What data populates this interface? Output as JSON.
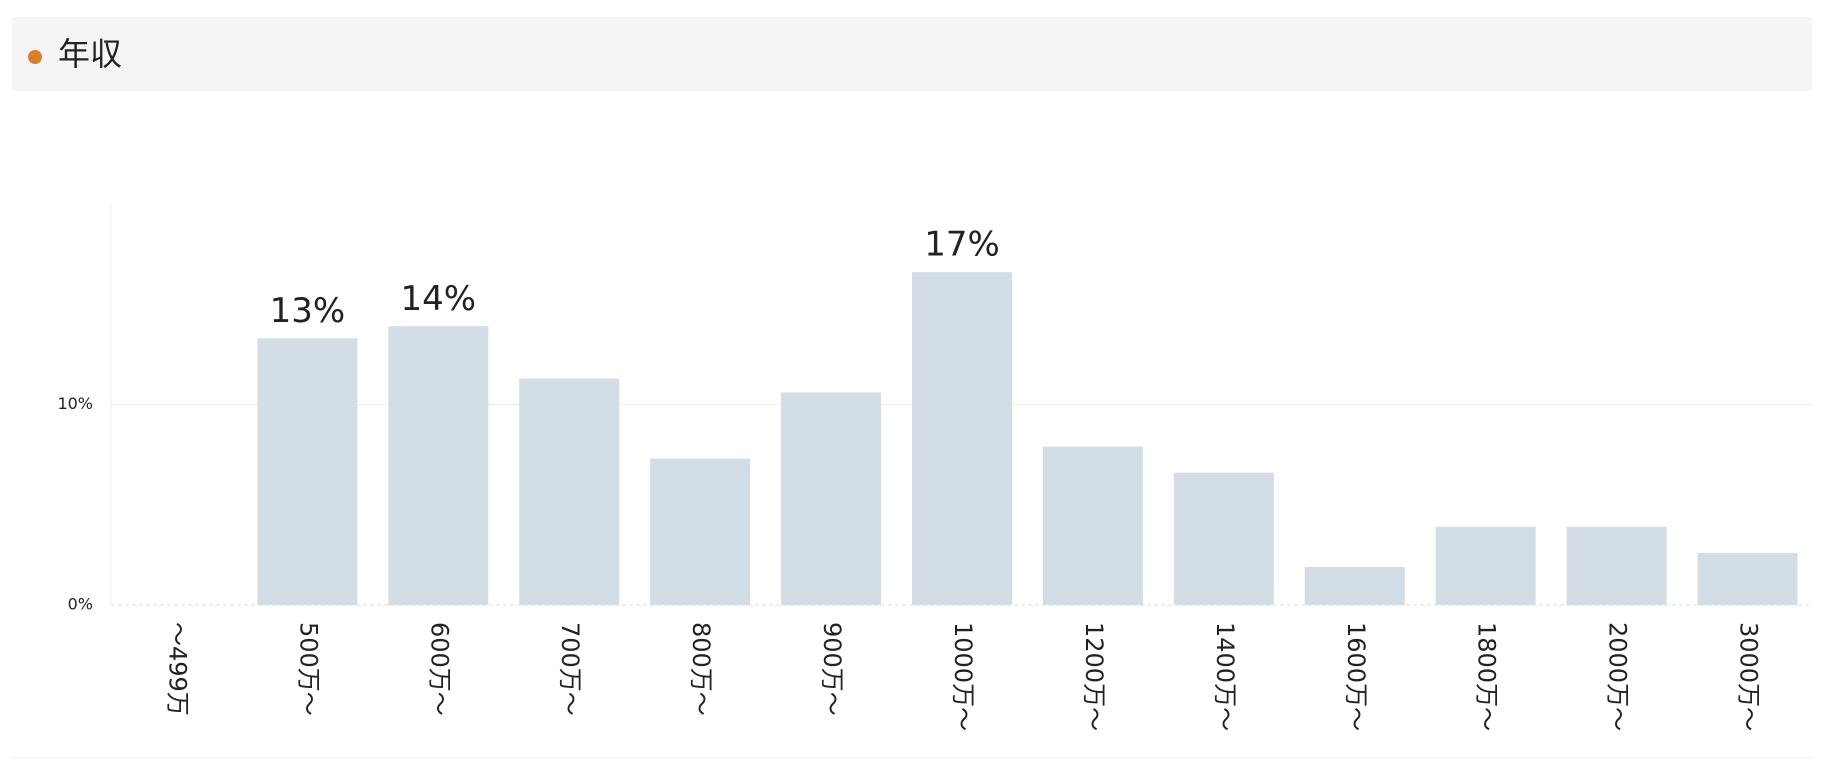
{
  "header": {
    "title": "年収"
  },
  "chart_data": {
    "type": "bar",
    "categories": [
      "～499万",
      "500万～",
      "600万～",
      "700万～",
      "800万～",
      "900万～",
      "1000万～",
      "1200万～",
      "1400万～",
      "1600万～",
      "1800万～",
      "2000万～",
      "3000万～"
    ],
    "values": [
      0,
      13.3,
      13.9,
      11.3,
      7.3,
      10.6,
      16.6,
      7.9,
      6.6,
      1.9,
      3.9,
      3.9,
      2.6
    ],
    "value_labels": [
      null,
      "13%",
      "14%",
      null,
      null,
      null,
      "17%",
      null,
      null,
      null,
      null,
      null,
      null
    ],
    "color": "#d2dde5",
    "ylim": [
      0,
      20
    ],
    "yticks": [
      {
        "value": 0,
        "label": "0%"
      },
      {
        "value": 10,
        "label": "10%"
      }
    ],
    "grid": true
  }
}
